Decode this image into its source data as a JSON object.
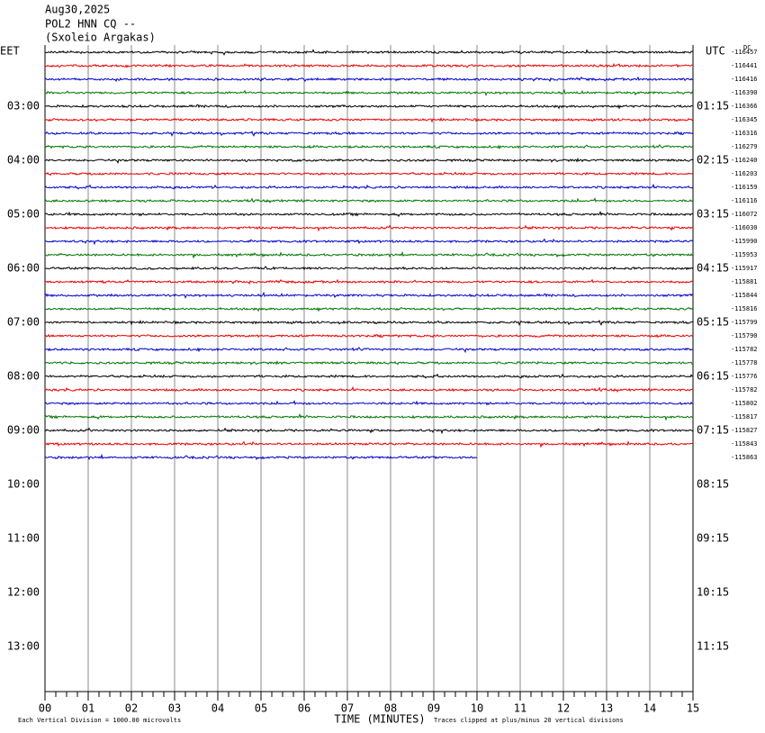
{
  "header": {
    "date": "Aug30,2025",
    "station": "POL2 HNN CQ --",
    "site": "(Sxoleio Argakas)"
  },
  "left_axis": {
    "title": "EET",
    "labels": [
      "03:00",
      "04:00",
      "05:00",
      "06:00",
      "07:00",
      "08:00",
      "09:00",
      "10:00",
      "11:00",
      "12:00",
      "13:00"
    ]
  },
  "right_axis": {
    "title": "UTC",
    "labels": [
      "01:15",
      "02:15",
      "03:15",
      "04:15",
      "05:15",
      "06:15",
      "07:15",
      "08:15",
      "09:15",
      "10:15",
      "11:15"
    ]
  },
  "dc_label": "DC",
  "dc_offsets": [
    "-116457",
    "-116441",
    "-116416",
    "-116390",
    "-116366",
    "-116345",
    "-116316",
    "-116279",
    "-116240",
    "-116203",
    "-116159",
    "-116116",
    "-116072",
    "-116030",
    "-115990",
    "-115953",
    "-115917",
    "-115881",
    "-115844",
    "-115816",
    "-115799",
    "-115790",
    "-115782",
    "-115778",
    "-115776",
    "-115782",
    "-115802",
    "-115817",
    "-115827",
    "-115843",
    "-115863"
  ],
  "x_axis": {
    "title": "TIME (MINUTES)",
    "labels": [
      "00",
      "01",
      "02",
      "03",
      "04",
      "05",
      "06",
      "07",
      "08",
      "09",
      "10",
      "11",
      "12",
      "13",
      "14",
      "15"
    ]
  },
  "footer": {
    "scale": "Each Vertical Division = 1000.00 microvolts",
    "clip": "Traces clipped at plus/minus 20 vertical divisions"
  }
}
